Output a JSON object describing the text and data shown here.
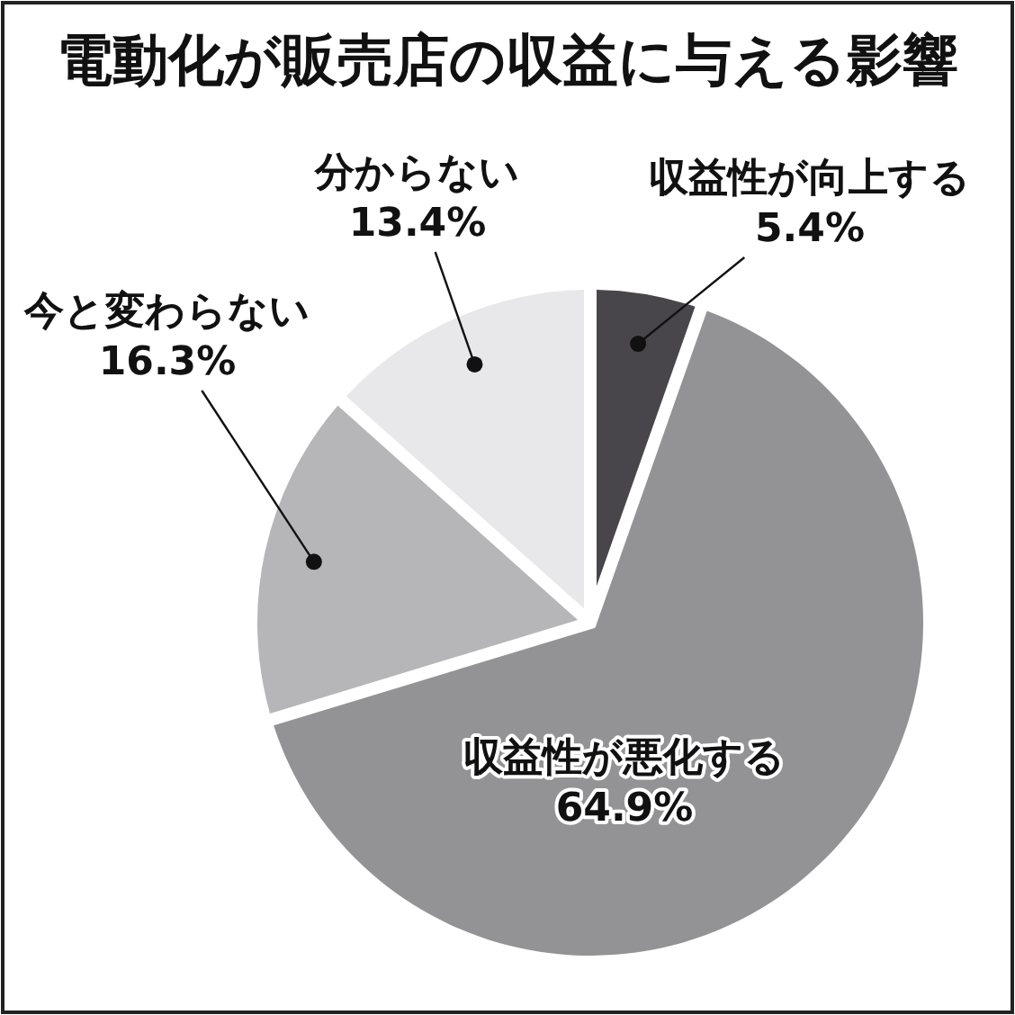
{
  "chart_data": {
    "type": "pie",
    "title": "電動化が販売店の収益に与える影響",
    "categories": [
      "収益性が向上する",
      "収益性が悪化する",
      "今と変わらない",
      "分からない"
    ],
    "values": [
      5.4,
      64.9,
      16.3,
      13.4
    ],
    "colors": [
      "#49464b",
      "#939395",
      "#b6b6b8",
      "#e8e8ea"
    ],
    "value_labels": [
      "5.4%",
      "64.9%",
      "16.3%",
      "13.4%"
    ]
  }
}
